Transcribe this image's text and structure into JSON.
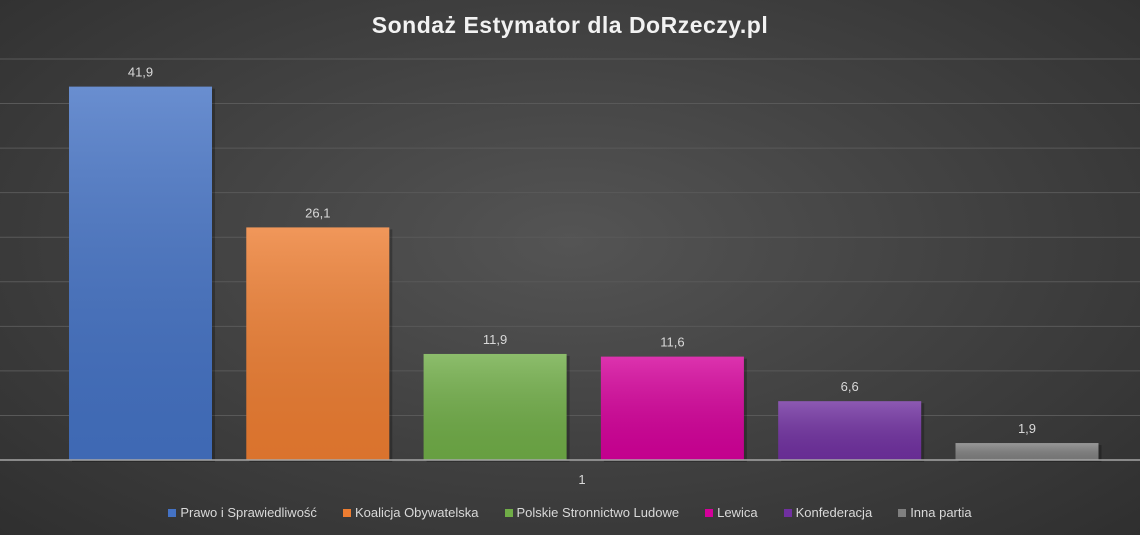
{
  "chart_data": {
    "type": "bar",
    "title": "Sondaż Estymator dla DoRzeczy.pl",
    "categories": [
      "1"
    ],
    "series": [
      {
        "name": "Prawo i Sprawiedliwość",
        "values": [
          41.9
        ],
        "label": "41,9",
        "color": "#4472c4"
      },
      {
        "name": "Koalicja Obywatelska",
        "values": [
          26.1
        ],
        "label": "26,1",
        "color": "#ed7d31"
      },
      {
        "name": "Polskie Stronnictwo Ludowe",
        "values": [
          11.9
        ],
        "label": "11,9",
        "color": "#70ad47"
      },
      {
        "name": "Lewica",
        "values": [
          11.6
        ],
        "label": "11,6",
        "color": "#d4009a"
      },
      {
        "name": "Konfederacja",
        "values": [
          6.6
        ],
        "label": "6,6",
        "color": "#7030a0"
      },
      {
        "name": "Inna partia",
        "values": [
          1.9
        ],
        "label": "1,9",
        "color": "#7f7f7f"
      }
    ],
    "xlabel": "",
    "ylabel": "",
    "ylim": [
      0,
      45
    ],
    "grid": true,
    "grid_step": 5,
    "legend": "bottom"
  }
}
